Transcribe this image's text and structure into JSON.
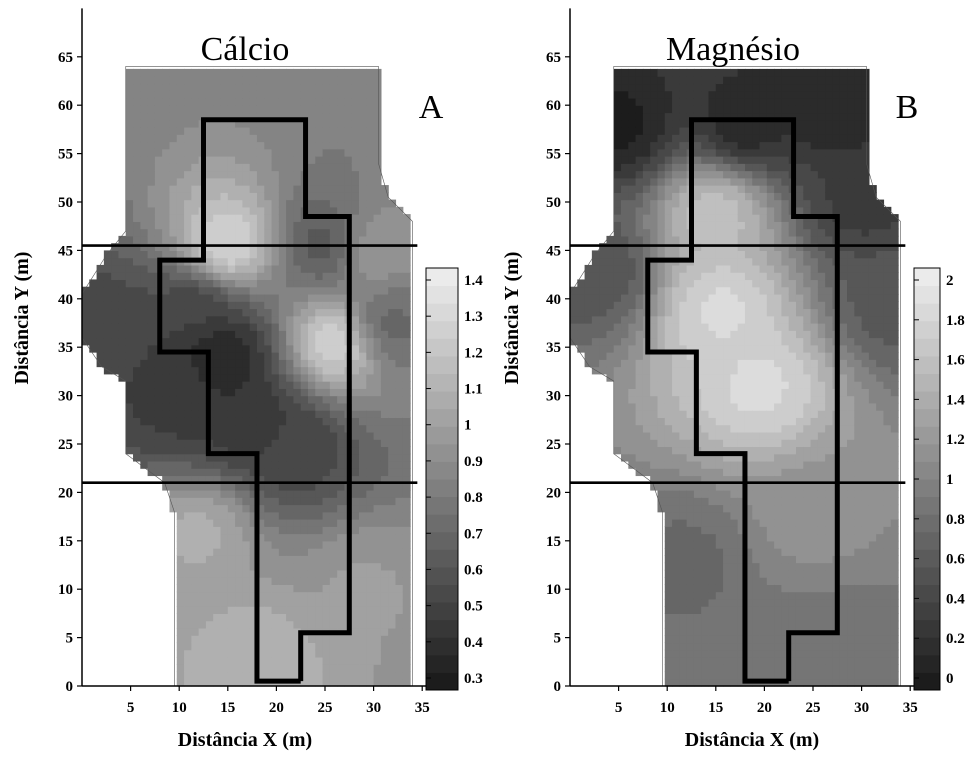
{
  "chart_data": [
    {
      "type": "heatmap",
      "title": "Cálcio",
      "panel_label": "A",
      "xlabel": "Distância X (m)",
      "ylabel": "Distância Y (m)",
      "xlim": [
        0,
        35
      ],
      "ylim": [
        0,
        67
      ],
      "x_ticks": [
        "5",
        "10",
        "15",
        "20",
        "25",
        "30",
        "35"
      ],
      "y_ticks": [
        "0",
        "5",
        "10",
        "15",
        "20",
        "25",
        "30",
        "35",
        "40",
        "45",
        "50",
        "55",
        "60",
        "65"
      ],
      "colorbar_ticks": [
        "0.3",
        "0.4",
        "0.5",
        "0.6",
        "0.7",
        "0.8",
        "0.9",
        "1",
        "1.1",
        "1.2",
        "1.3",
        "1.4"
      ],
      "colorbar_range": [
        0.3,
        1.45
      ],
      "background_level": 0.9,
      "features": [
        {
          "x": 15,
          "y": 45.5,
          "value": 1.4
        },
        {
          "x": 26,
          "y": 35.5,
          "value": 1.4
        },
        {
          "x": 14.5,
          "y": 34.2,
          "value": 0.35
        },
        {
          "x": 17,
          "y": 28,
          "value": 0.45
        },
        {
          "x": 22,
          "y": 25,
          "value": 0.55
        },
        {
          "x": 12,
          "y": 39,
          "value": 0.55
        },
        {
          "x": 3,
          "y": 36,
          "value": 0.55
        },
        {
          "x": 10,
          "y": 30,
          "value": 0.5
        },
        {
          "x": 25,
          "y": 45.5,
          "value": 0.65
        },
        {
          "x": 12,
          "y": 16,
          "value": 1.15
        },
        {
          "x": 18,
          "y": 2.5,
          "value": 1.2
        },
        {
          "x": 30,
          "y": 45,
          "value": 1.05
        },
        {
          "x": 31.5,
          "y": 37.5,
          "value": 0.75
        },
        {
          "x": 29,
          "y": 10,
          "value": 1.05
        }
      ],
      "horizontal_lines_y": [
        21,
        45.5
      ],
      "plot_outline": [
        [
          22.5,
          0.5
        ],
        [
          18,
          0.5
        ],
        [
          18,
          24
        ],
        [
          13,
          24
        ],
        [
          13,
          34.5
        ],
        [
          8,
          34.5
        ],
        [
          8,
          44
        ],
        [
          12.5,
          44
        ],
        [
          12.5,
          58.5
        ],
        [
          23,
          58.5
        ],
        [
          23,
          48.5
        ],
        [
          27.5,
          48.5
        ],
        [
          27.5,
          5.5
        ],
        [
          22.5,
          5.5
        ],
        [
          22.5,
          0.5
        ]
      ],
      "sampled_region": [
        [
          9.5,
          0
        ],
        [
          34,
          0
        ],
        [
          34,
          48
        ],
        [
          31.5,
          50.5
        ],
        [
          30.5,
          54
        ],
        [
          30.5,
          64
        ],
        [
          4.5,
          64
        ],
        [
          4.5,
          47
        ],
        [
          2.5,
          44.5
        ],
        [
          0,
          40.5
        ],
        [
          0,
          36
        ],
        [
          2,
          33
        ],
        [
          4.5,
          31.5
        ],
        [
          4.5,
          24
        ],
        [
          8.5,
          21
        ],
        [
          9.5,
          18
        ]
      ]
    },
    {
      "type": "heatmap",
      "title": "Magnésio",
      "panel_label": "B",
      "xlabel": "Distância X (m)",
      "ylabel": "Distância Y (m)",
      "xlim": [
        0,
        35
      ],
      "ylim": [
        0,
        67
      ],
      "x_ticks": [
        "5",
        "10",
        "15",
        "20",
        "25",
        "30",
        "35"
      ],
      "y_ticks": [
        "0",
        "5",
        "10",
        "15",
        "20",
        "25",
        "30",
        "35",
        "40",
        "45",
        "50",
        "55",
        "60",
        "65"
      ],
      "colorbar_ticks": [
        "0",
        "0.2",
        "0.4",
        "0.6",
        "0.8",
        "1",
        "1.2",
        "1.4",
        "1.6",
        "1.8",
        "2"
      ],
      "colorbar_range": [
        -0.1,
        2.1
      ],
      "background_level": 1.0,
      "features": [
        {
          "x": 19.5,
          "y": 31,
          "value": 2.0
        },
        {
          "x": 15.5,
          "y": 39,
          "value": 2.0
        },
        {
          "x": 15,
          "y": 49,
          "value": 1.75
        },
        {
          "x": 18,
          "y": 58,
          "value": 0.1
        },
        {
          "x": 5,
          "y": 58,
          "value": 0.0
        },
        {
          "x": 27,
          "y": 60,
          "value": 0.05
        },
        {
          "x": 30,
          "y": 50,
          "value": 0.3
        },
        {
          "x": 3,
          "y": 43,
          "value": 0.55
        },
        {
          "x": 33,
          "y": 40,
          "value": 0.6
        },
        {
          "x": 12,
          "y": 13,
          "value": 0.8
        },
        {
          "x": 29.5,
          "y": 5,
          "value": 0.95
        },
        {
          "x": 25,
          "y": 18,
          "value": 1.25
        },
        {
          "x": 23,
          "y": 2,
          "value": 0.85
        }
      ],
      "horizontal_lines_y": [
        21,
        45.5
      ],
      "plot_outline": [
        [
          22.5,
          0.5
        ],
        [
          18,
          0.5
        ],
        [
          18,
          24
        ],
        [
          13,
          24
        ],
        [
          13,
          34.5
        ],
        [
          8,
          34.5
        ],
        [
          8,
          44
        ],
        [
          12.5,
          44
        ],
        [
          12.5,
          58.5
        ],
        [
          23,
          58.5
        ],
        [
          23,
          48.5
        ],
        [
          27.5,
          48.5
        ],
        [
          27.5,
          5.5
        ],
        [
          22.5,
          5.5
        ],
        [
          22.5,
          0.5
        ]
      ],
      "sampled_region": [
        [
          9.5,
          0
        ],
        [
          34,
          0
        ],
        [
          34,
          48
        ],
        [
          31.5,
          50.5
        ],
        [
          30.5,
          54
        ],
        [
          30.5,
          64
        ],
        [
          4.5,
          64
        ],
        [
          4.5,
          47
        ],
        [
          2.5,
          44.5
        ],
        [
          0,
          40.5
        ],
        [
          0,
          36
        ],
        [
          2,
          33
        ],
        [
          4.5,
          31.5
        ],
        [
          4.5,
          24
        ],
        [
          8.5,
          21
        ],
        [
          9.5,
          18
        ]
      ]
    }
  ]
}
